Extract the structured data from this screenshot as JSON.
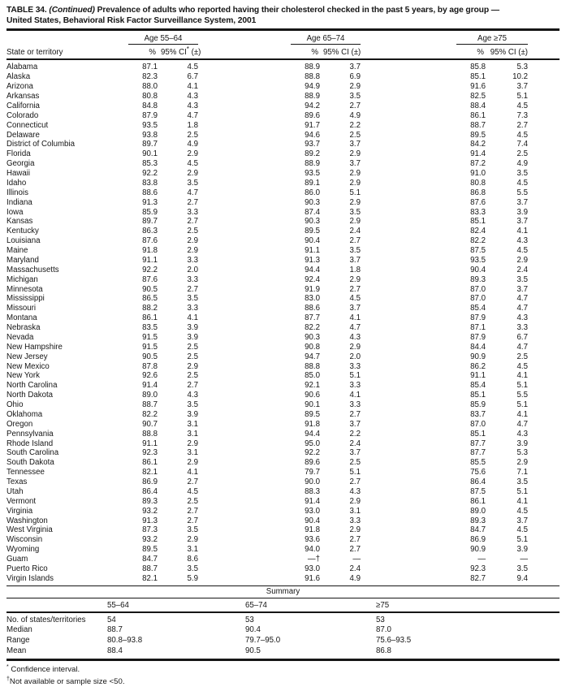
{
  "title": {
    "bold_prefix": "TABLE 34.",
    "continued": "(Continued)",
    "line1_rest": "Prevalence of adults who reported having their cholesterol checked in the past 5 years, by age group —",
    "line2": "United States, Behavioral Risk Factor Surveillance System, 2001"
  },
  "table": {
    "state_col_header": "State or territory",
    "groups": [
      {
        "label": "Age 55–64",
        "pct": "%",
        "ci_main": "95% CI",
        "ci_sup": "*",
        "ci_tail": " (±)"
      },
      {
        "label": "Age 65–74",
        "pct": "%",
        "ci_main": "95% CI",
        "ci_sup": "",
        "ci_tail": " (±)"
      },
      {
        "label": "Age ≥75",
        "pct": "%",
        "ci_main": "95% CI",
        "ci_sup": "",
        "ci_tail": " (±)"
      }
    ],
    "rows": [
      [
        "Alabama",
        "87.1",
        "4.5",
        "88.9",
        "3.7",
        "85.8",
        "5.3"
      ],
      [
        "Alaska",
        "82.3",
        "6.7",
        "88.8",
        "6.9",
        "85.1",
        "10.2"
      ],
      [
        "Arizona",
        "88.0",
        "4.1",
        "94.9",
        "2.9",
        "91.6",
        "3.7"
      ],
      [
        "Arkansas",
        "80.8",
        "4.3",
        "88.9",
        "3.5",
        "82.5",
        "5.1"
      ],
      [
        "California",
        "84.8",
        "4.3",
        "94.2",
        "2.7",
        "88.4",
        "4.5"
      ],
      [
        "Colorado",
        "87.9",
        "4.7",
        "89.6",
        "4.9",
        "86.1",
        "7.3"
      ],
      [
        "Connecticut",
        "93.5",
        "1.8",
        "91.7",
        "2.2",
        "88.7",
        "2.7"
      ],
      [
        "Delaware",
        "93.8",
        "2.5",
        "94.6",
        "2.5",
        "89.5",
        "4.5"
      ],
      [
        "District of Columbia",
        "89.7",
        "4.9",
        "93.7",
        "3.7",
        "84.2",
        "7.4"
      ],
      [
        "Florida",
        "90.1",
        "2.9",
        "89.2",
        "2.9",
        "91.4",
        "2.5"
      ],
      [
        "Georgia",
        "85.3",
        "4.5",
        "88.9",
        "3.7",
        "87.2",
        "4.9"
      ],
      [
        "Hawaii",
        "92.2",
        "2.9",
        "93.5",
        "2.9",
        "91.0",
        "3.5"
      ],
      [
        "Idaho",
        "83.8",
        "3.5",
        "89.1",
        "2.9",
        "80.8",
        "4.5"
      ],
      [
        "Illinois",
        "88.6",
        "4.7",
        "86.0",
        "5.1",
        "86.8",
        "5.5"
      ],
      [
        "Indiana",
        "91.3",
        "2.7",
        "90.3",
        "2.9",
        "87.6",
        "3.7"
      ],
      [
        "Iowa",
        "85.9",
        "3.3",
        "87.4",
        "3.5",
        "83.3",
        "3.9"
      ],
      [
        "Kansas",
        "89.7",
        "2.7",
        "90.3",
        "2.9",
        "85.1",
        "3.7"
      ],
      [
        "Kentucky",
        "86.3",
        "2.5",
        "89.5",
        "2.4",
        "82.4",
        "4.1"
      ],
      [
        "Louisiana",
        "87.6",
        "2.9",
        "90.4",
        "2.7",
        "82.2",
        "4.3"
      ],
      [
        "Maine",
        "91.8",
        "2.9",
        "91.1",
        "3.5",
        "87.5",
        "4.5"
      ],
      [
        "Maryland",
        "91.1",
        "3.3",
        "91.3",
        "3.7",
        "93.5",
        "2.9"
      ],
      [
        "Massachusetts",
        "92.2",
        "2.0",
        "94.4",
        "1.8",
        "90.4",
        "2.4"
      ],
      [
        "Michigan",
        "87.6",
        "3.3",
        "92.4",
        "2.9",
        "89.3",
        "3.5"
      ],
      [
        "Minnesota",
        "90.5",
        "2.7",
        "91.9",
        "2.7",
        "87.0",
        "3.7"
      ],
      [
        "Mississippi",
        "86.5",
        "3.5",
        "83.0",
        "4.5",
        "87.0",
        "4.7"
      ],
      [
        "Missouri",
        "88.2",
        "3.3",
        "88.6",
        "3.7",
        "85.4",
        "4.7"
      ],
      [
        "Montana",
        "86.1",
        "4.1",
        "87.7",
        "4.1",
        "87.9",
        "4.3"
      ],
      [
        "Nebraska",
        "83.5",
        "3.9",
        "82.2",
        "4.7",
        "87.1",
        "3.3"
      ],
      [
        "Nevada",
        "91.5",
        "3.9",
        "90.3",
        "4.3",
        "87.9",
        "6.7"
      ],
      [
        "New Hampshire",
        "91.5",
        "2.5",
        "90.8",
        "2.9",
        "84.4",
        "4.7"
      ],
      [
        "New Jersey",
        "90.5",
        "2.5",
        "94.7",
        "2.0",
        "90.9",
        "2.5"
      ],
      [
        "New Mexico",
        "87.8",
        "2.9",
        "88.8",
        "3.3",
        "86.2",
        "4.5"
      ],
      [
        "New York",
        "92.6",
        "2.5",
        "85.0",
        "5.1",
        "91.1",
        "4.1"
      ],
      [
        "North Carolina",
        "91.4",
        "2.7",
        "92.1",
        "3.3",
        "85.4",
        "5.1"
      ],
      [
        "North Dakota",
        "89.0",
        "4.3",
        "90.6",
        "4.1",
        "85.1",
        "5.5"
      ],
      [
        "Ohio",
        "88.7",
        "3.5",
        "90.1",
        "3.3",
        "85.9",
        "5.1"
      ],
      [
        "Oklahoma",
        "82.2",
        "3.9",
        "89.5",
        "2.7",
        "83.7",
        "4.1"
      ],
      [
        "Oregon",
        "90.7",
        "3.1",
        "91.8",
        "3.7",
        "87.0",
        "4.7"
      ],
      [
        "Pennsylvania",
        "88.8",
        "3.1",
        "94.4",
        "2.2",
        "85.1",
        "4.3"
      ],
      [
        "Rhode Island",
        "91.1",
        "2.9",
        "95.0",
        "2.4",
        "87.7",
        "3.9"
      ],
      [
        "South Carolina",
        "92.3",
        "3.1",
        "92.2",
        "3.7",
        "87.7",
        "5.3"
      ],
      [
        "South Dakota",
        "86.1",
        "2.9",
        "89.6",
        "2.5",
        "85.5",
        "2.9"
      ],
      [
        "Tennessee",
        "82.1",
        "4.1",
        "79.7",
        "5.1",
        "75.6",
        "7.1"
      ],
      [
        "Texas",
        "86.9",
        "2.7",
        "90.0",
        "2.7",
        "86.4",
        "3.5"
      ],
      [
        "Utah",
        "86.4",
        "4.5",
        "88.3",
        "4.3",
        "87.5",
        "5.1"
      ],
      [
        "Vermont",
        "89.3",
        "2.5",
        "91.4",
        "2.9",
        "86.1",
        "4.1"
      ],
      [
        "Virginia",
        "93.2",
        "2.7",
        "93.0",
        "3.1",
        "89.0",
        "4.5"
      ],
      [
        "Washington",
        "91.3",
        "2.7",
        "90.4",
        "3.3",
        "89.3",
        "3.7"
      ],
      [
        "West Virginia",
        "87.3",
        "3.5",
        "91.8",
        "2.9",
        "84.7",
        "4.5"
      ],
      [
        "Wisconsin",
        "93.2",
        "2.9",
        "93.6",
        "2.7",
        "86.9",
        "5.1"
      ],
      [
        "Wyoming",
        "89.5",
        "3.1",
        "94.0",
        "2.7",
        "90.9",
        "3.9"
      ],
      [
        "Guam",
        "84.7",
        "8.6",
        "—†",
        "—",
        "—",
        "—"
      ],
      [
        "Puerto Rico",
        "88.7",
        "3.5",
        "93.0",
        "2.4",
        "92.3",
        "3.5"
      ],
      [
        "Virgin Islands",
        "82.1",
        "5.9",
        "91.6",
        "4.9",
        "82.7",
        "9.4"
      ]
    ]
  },
  "summary": {
    "title": "Summary",
    "col_headers": [
      "55–64",
      "65–74",
      "≥75"
    ],
    "rows": [
      [
        "No. of states/territories",
        "54",
        "53",
        "53"
      ],
      [
        "Median",
        "88.7",
        "90.4",
        "87.0"
      ],
      [
        "Range",
        "80.8–93.8",
        "79.7–95.0",
        "75.6–93.5"
      ],
      [
        "Mean",
        "88.4",
        "90.5",
        "86.8"
      ]
    ]
  },
  "footnotes": [
    {
      "marker": "*",
      "text": " Confidence interval."
    },
    {
      "marker": "†",
      "text": "Not available or sample size <50."
    }
  ]
}
